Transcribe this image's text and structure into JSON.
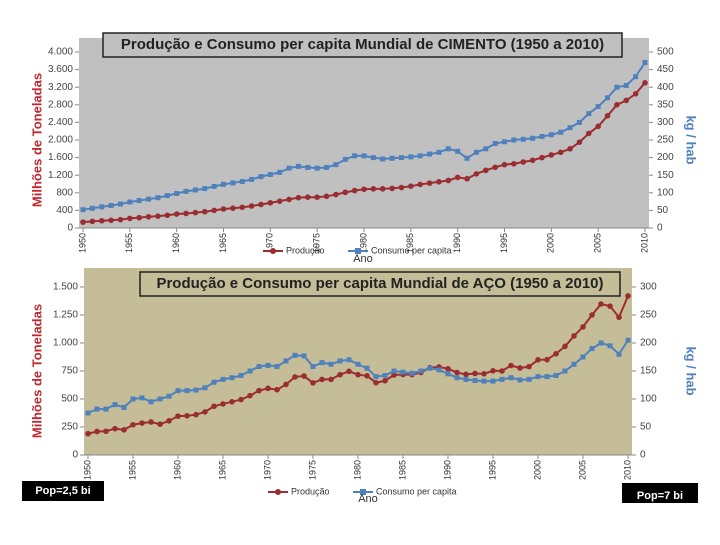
{
  "chart_data": [
    {
      "type": "line",
      "title": "Produção e Consumo per capita Mundial de CIMENTO  (1950 a 2010)",
      "xlabel": "Ano",
      "ylabel": "Milhões de Toneladas",
      "y2label": "kg / hab",
      "background": "#c0c0c0",
      "x": [
        1950,
        1951,
        1952,
        1953,
        1954,
        1955,
        1956,
        1957,
        1958,
        1959,
        1960,
        1961,
        1962,
        1963,
        1964,
        1965,
        1966,
        1967,
        1968,
        1969,
        1970,
        1971,
        1972,
        1973,
        1974,
        1975,
        1976,
        1977,
        1978,
        1979,
        1980,
        1981,
        1982,
        1983,
        1984,
        1985,
        1986,
        1987,
        1988,
        1989,
        1990,
        1991,
        1992,
        1993,
        1994,
        1995,
        1996,
        1997,
        1998,
        1999,
        2000,
        2001,
        2002,
        2003,
        2004,
        2005,
        2006,
        2007,
        2008,
        2009,
        2010
      ],
      "xlim": [
        1950,
        2010
      ],
      "xticks": [
        1950,
        1955,
        1960,
        1965,
        1970,
        1975,
        1980,
        1985,
        1990,
        1995,
        2000,
        2005,
        2010
      ],
      "ylim": [
        0,
        4000
      ],
      "yticks": [
        0,
        400,
        800,
        {
          "value": 1200,
          "label": "1.200"
        },
        {
          "value": 1600,
          "label": "1.600"
        },
        {
          "value": 2000,
          "label": "2.000"
        },
        {
          "value": 2400,
          "label": "2.400"
        },
        {
          "value": 2800,
          "label": "2.800"
        },
        {
          "value": 3200,
          "label": "3.200"
        },
        {
          "value": 3600,
          "label": "3.600"
        },
        {
          "value": 4000,
          "label": "4.000"
        }
      ],
      "y2lim": [
        0,
        500
      ],
      "y2ticks": [
        0,
        50,
        100,
        150,
        200,
        250,
        300,
        350,
        400,
        450,
        500
      ],
      "series": [
        {
          "name": "Produção",
          "color": "#9b2d30",
          "values": [
            133,
            150,
            165,
            175,
            190,
            218,
            235,
            255,
            270,
            290,
            317,
            330,
            350,
            370,
            400,
            432,
            450,
            470,
            500,
            535,
            572,
            610,
            650,
            690,
            700,
            700,
            720,
            760,
            810,
            850,
            880,
            890,
            890,
            900,
            920,
            950,
            990,
            1020,
            1050,
            1080,
            1150,
            1120,
            1230,
            1310,
            1380,
            1440,
            1460,
            1500,
            1540,
            1600,
            1660,
            1720,
            1800,
            1950,
            2150,
            2310,
            2550,
            2800,
            2900,
            3050,
            3300
          ]
        },
        {
          "name": "Consumo per capita",
          "color": "#4f81bd",
          "axis": "y2",
          "values": [
            52,
            56,
            60,
            64,
            68,
            74,
            78,
            82,
            86,
            92,
            98,
            104,
            108,
            112,
            118,
            124,
            128,
            132,
            138,
            146,
            152,
            158,
            170,
            175,
            172,
            170,
            172,
            180,
            195,
            205,
            205,
            200,
            196,
            198,
            200,
            202,
            205,
            210,
            215,
            225,
            218,
            198,
            215,
            225,
            240,
            245,
            250,
            252,
            255,
            260,
            265,
            272,
            285,
            300,
            325,
            345,
            370,
            400,
            405,
            430,
            470
          ]
        }
      ]
    },
    {
      "type": "line",
      "title": "Produção e Consumo per capita Mundial de AÇO  (1950 a 2010)",
      "xlabel": "Ano",
      "ylabel": "Milhões de Toneladas",
      "y2label": "kg / hab",
      "background": "#c4bd97",
      "x": [
        1950,
        1951,
        1952,
        1953,
        1954,
        1955,
        1956,
        1957,
        1958,
        1959,
        1960,
        1961,
        1962,
        1963,
        1964,
        1965,
        1966,
        1967,
        1968,
        1969,
        1970,
        1971,
        1972,
        1973,
        1974,
        1975,
        1976,
        1977,
        1978,
        1979,
        1980,
        1981,
        1982,
        1983,
        1984,
        1985,
        1986,
        1987,
        1988,
        1989,
        1990,
        1991,
        1992,
        1993,
        1994,
        1995,
        1996,
        1997,
        1998,
        1999,
        2000,
        2001,
        2002,
        2003,
        2004,
        2005,
        2006,
        2007,
        2008,
        2009,
        2010
      ],
      "xlim": [
        1950,
        2010
      ],
      "xticks": [
        1950,
        1955,
        1960,
        1965,
        1970,
        1975,
        1980,
        1985,
        1990,
        1995,
        2000,
        2005,
        2010
      ],
      "ylim": [
        0,
        1500
      ],
      "yticks": [
        0,
        250,
        500,
        750,
        {
          "value": 1000,
          "label": "1.000"
        },
        {
          "value": 1250,
          "label": "1.250"
        },
        {
          "value": 1500,
          "label": "1.500"
        }
      ],
      "y2lim": [
        0,
        300
      ],
      "y2ticks": [
        0,
        50,
        100,
        150,
        200,
        250,
        300
      ],
      "series": [
        {
          "name": "Produção",
          "color": "#9b2d30",
          "values": [
            190,
            210,
            212,
            235,
            225,
            270,
            285,
            295,
            275,
            305,
            347,
            350,
            360,
            385,
            435,
            456,
            475,
            495,
            530,
            575,
            595,
            583,
            630,
            697,
            705,
            644,
            675,
            675,
            717,
            747,
            717,
            707,
            645,
            663,
            714,
            719,
            718,
            736,
            780,
            786,
            770,
            736,
            720,
            728,
            725,
            752,
            750,
            799,
            777,
            789,
            850,
            851,
            904,
            970,
            1063,
            1144,
            1250,
            1348,
            1329,
            1230,
            1420
          ]
        },
        {
          "name": "Consumo per capita",
          "color": "#4f81bd",
          "axis": "y2",
          "values": [
            75,
            82,
            82,
            90,
            85,
            100,
            102,
            95,
            100,
            105,
            115,
            115,
            116,
            120,
            130,
            135,
            138,
            142,
            150,
            158,
            160,
            158,
            168,
            178,
            177,
            158,
            165,
            162,
            168,
            170,
            162,
            155,
            140,
            142,
            150,
            148,
            146,
            150,
            155,
            152,
            145,
            138,
            135,
            133,
            132,
            132,
            135,
            138,
            134,
            135,
            140,
            140,
            142,
            150,
            162,
            175,
            190,
            200,
            195,
            180,
            205
          ]
        }
      ]
    }
  ],
  "notes": [
    "Pop=2,5 bi",
    "Pop=7 bi"
  ]
}
